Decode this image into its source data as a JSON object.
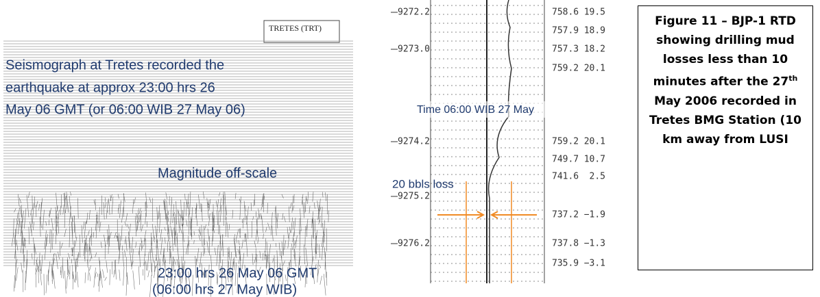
{
  "seismograph": {
    "stamp": "TRETES (TRT)",
    "caption_lines": [
      "Seismograph at Tretes recorded the",
      "earthquake at  approx 23:00 hrs 26",
      "May 06 GMT (or 06:00 WIB 27 May 06)"
    ],
    "magnitude_note": "Magnitude off-scale",
    "time_lines": [
      "23:00 hrs 26 May 06 GMT",
      "(06:00 hrs 27 May WIB)"
    ]
  },
  "drilling_log": {
    "depths": [
      "9272.2",
      "9273.0",
      "9274.2",
      "9275.2",
      "9276.2"
    ],
    "rows": [
      [
        "758.6",
        "19.5"
      ],
      [
        "757.9",
        "18.9"
      ],
      [
        "757.3",
        "18.2"
      ],
      [
        "759.2",
        "20.1"
      ],
      [
        "759.2",
        "20.1"
      ],
      [
        "749.7",
        "10.7"
      ],
      [
        "741.6",
        "2.5"
      ],
      [
        "737.2",
        "−1.9"
      ],
      [
        "737.8",
        "−1.3"
      ],
      [
        "735.9",
        "−3.1"
      ]
    ],
    "time_note": "Time 06:00 WIB 27 May",
    "loss_note": "20 bbls loss"
  },
  "figure_caption": {
    "before": "Figure 11 – BJP-1 RTD showing drilling mud losses less than 10 minutes after the 27",
    "superscript": "th",
    "after": " May 2006 recorded in Tretes BMG Station (10 km away from LUSI"
  }
}
